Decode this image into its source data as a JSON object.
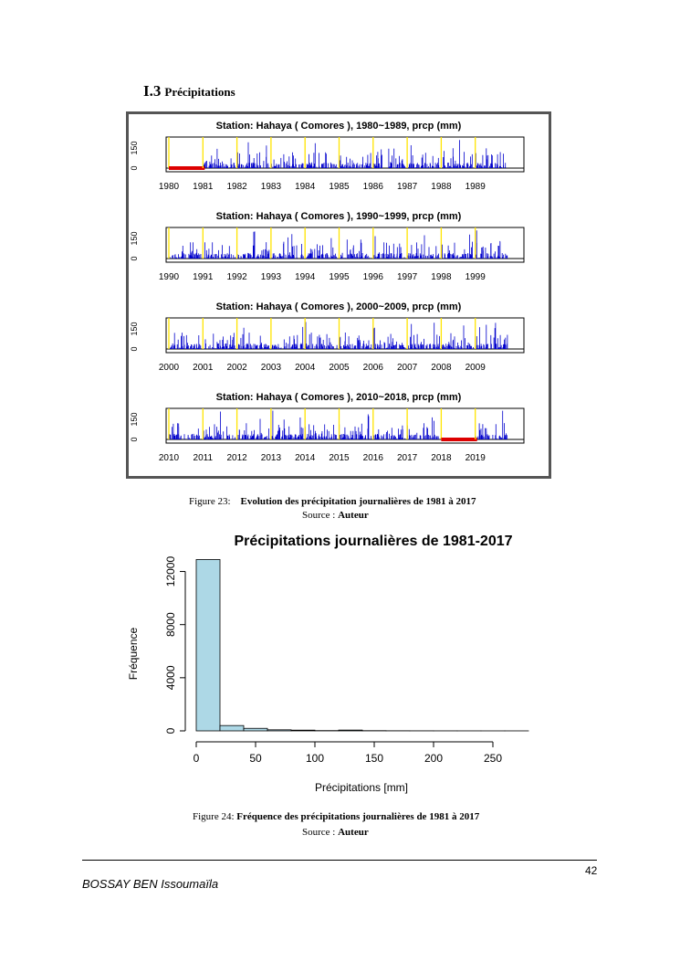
{
  "section": {
    "number": "I.3",
    "title": "Précipitations"
  },
  "figure23": {
    "caption_label": "Figure 23:",
    "caption_text": "Evolution des précipitation journalières de 1981 à 2017",
    "source_label": "Source : ",
    "source_value": "Auteur"
  },
  "figure24": {
    "caption_label": "Figure 24:",
    "caption_text": "Fréquence des précipitations journalières de 1981 à 2017",
    "source_label": "Source : ",
    "source_value": "Auteur"
  },
  "chart_data": [
    {
      "type": "line",
      "title": "Station: Hahaya ( Comores ), 1980~1989,  prcp (mm)",
      "x": [
        "1980",
        "1981",
        "1982",
        "1983",
        "1984",
        "1985",
        "1986",
        "1987",
        "1988",
        "1989"
      ],
      "yticks": [
        "0",
        "150"
      ],
      "missing_years": [
        "1980"
      ],
      "colors": {
        "series": "#0000cc",
        "year_line": "#ffe400",
        "missing": "#dd0000"
      }
    },
    {
      "type": "line",
      "title": "Station: Hahaya ( Comores ), 1990~1999,  prcp (mm)",
      "x": [
        "1990",
        "1991",
        "1992",
        "1993",
        "1994",
        "1995",
        "1996",
        "1997",
        "1998",
        "1999"
      ],
      "yticks": [
        "0",
        "150"
      ],
      "missing_years": [],
      "colors": {
        "series": "#0000cc",
        "year_line": "#ffe400",
        "missing": "#dd0000"
      }
    },
    {
      "type": "line",
      "title": "Station: Hahaya ( Comores ), 2000~2009,  prcp (mm)",
      "x": [
        "2000",
        "2001",
        "2002",
        "2003",
        "2004",
        "2005",
        "2006",
        "2007",
        "2008",
        "2009"
      ],
      "yticks": [
        "0",
        "150"
      ],
      "missing_years": [],
      "colors": {
        "series": "#0000cc",
        "year_line": "#ffe400",
        "missing": "#dd0000"
      }
    },
    {
      "type": "line",
      "title": "Station: Hahaya ( Comores ), 2010~2018,  prcp (mm)",
      "x": [
        "2010",
        "2011",
        "2012",
        "2013",
        "2014",
        "2015",
        "2016",
        "2017",
        "2018",
        "2019"
      ],
      "yticks": [
        "0",
        "150"
      ],
      "missing_years": [
        "2018"
      ],
      "colors": {
        "series": "#0000cc",
        "year_line": "#ffe400",
        "missing": "#dd0000"
      }
    },
    {
      "type": "bar",
      "title": "Précipitations journalières  de 1981-2017",
      "xlabel": "Précipitations [mm]",
      "ylabel": "Fréquence",
      "bin_edges": [
        0,
        20,
        40,
        60,
        80,
        100,
        120,
        140,
        160,
        180,
        200,
        220,
        240,
        260,
        280
      ],
      "values": [
        12900,
        400,
        190,
        80,
        55,
        20,
        60,
        15,
        8,
        5,
        3,
        2,
        1,
        1
      ],
      "xticks": [
        0,
        50,
        100,
        150,
        200,
        250
      ],
      "yticks": [
        0,
        4000,
        8000,
        12000
      ],
      "xlim": [
        0,
        280
      ],
      "ylim": [
        0,
        13000
      ],
      "colors": {
        "bar_fill": "#add8e6",
        "bar_stroke": "#000000"
      }
    }
  ],
  "footer": {
    "page_number": "42",
    "author": "BOSSAY BEN Issoumaïla"
  }
}
